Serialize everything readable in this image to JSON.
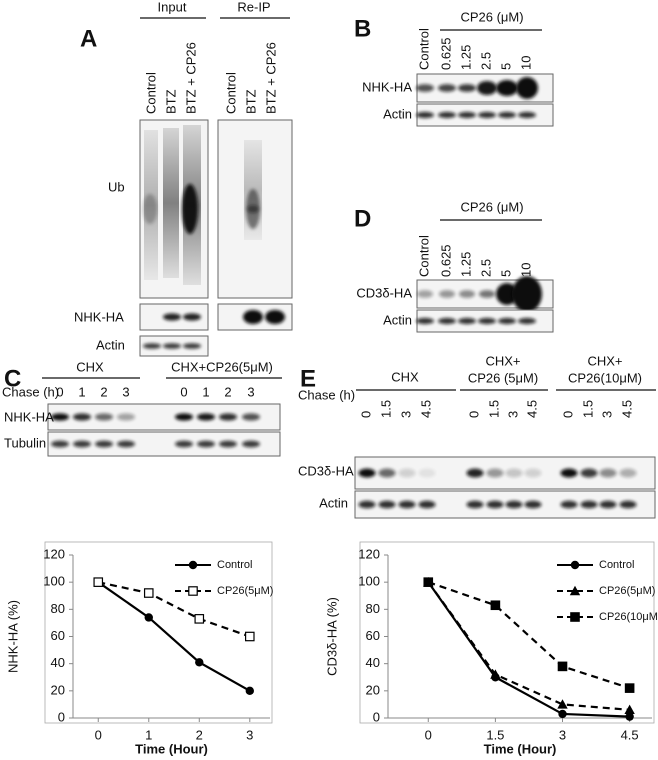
{
  "panels": {
    "A": {
      "label": "A",
      "groups": [
        "Input",
        "Re-IP"
      ],
      "lanes": [
        "Control",
        "BTZ",
        "BTZ + CP26"
      ],
      "rows": [
        "Ub",
        "NHK-HA",
        "Actin"
      ]
    },
    "B": {
      "label": "B",
      "treatment": "CP26 (μM)",
      "lanes": [
        "Control",
        "0.625",
        "1.25",
        "2.5",
        "5",
        "10"
      ],
      "rows": [
        "NHK-HA",
        "Actin"
      ]
    },
    "D": {
      "label": "D",
      "treatment": "CP26 (μM)",
      "lanes": [
        "Control",
        "0.625",
        "1.25",
        "2.5",
        "5",
        "10"
      ],
      "rows": [
        "CD3δ-HA",
        "Actin"
      ]
    },
    "C": {
      "label": "C",
      "groups": [
        [
          "CHX"
        ],
        [
          "CHX+CP26(5μM)"
        ]
      ],
      "chase": "Chase (h)",
      "lanes": [
        "0",
        "1",
        "2",
        "3"
      ],
      "rows": [
        "NHK-HA",
        "Tubulin"
      ]
    },
    "E": {
      "label": "E",
      "groups": [
        [
          "CHX"
        ],
        [
          "CHX+",
          "CP26 (5μM)"
        ],
        [
          "CHX+",
          "CP26(10μM)"
        ]
      ],
      "chase": "Chase (h)",
      "lanes": [
        "0",
        "1.5",
        "3",
        "4.5"
      ],
      "rows": [
        "CD3δ-HA",
        "Actin"
      ]
    }
  },
  "chart_data": [
    {
      "type": "line",
      "x_label": "Time (Hour)",
      "y_label": "NHK-HA (%)",
      "x": [
        0,
        1,
        2,
        3
      ],
      "xlim": [
        -0.5,
        3.4
      ],
      "xticks": [
        0,
        1,
        2,
        3
      ],
      "ylim": [
        0,
        120
      ],
      "yticks": [
        0,
        20,
        40,
        60,
        80,
        100,
        120
      ],
      "legend": "upper right",
      "series": [
        {
          "name": "Control",
          "color": "#000000",
          "dashed": false,
          "marker": "circle",
          "values": [
            100,
            74,
            41,
            20
          ]
        },
        {
          "name": "CP26(5μM)",
          "color": "#000000",
          "dashed": true,
          "marker": "square-open",
          "values": [
            100,
            92,
            73,
            60
          ]
        }
      ]
    },
    {
      "type": "line",
      "x_label": "Time (Hour)",
      "y_label": "CD3δ-HA (%)",
      "x": [
        0,
        1.5,
        3,
        4.5
      ],
      "xlim": [
        -0.9,
        5.0
      ],
      "xticks": [
        0,
        1.5,
        3,
        4.5
      ],
      "ylim": [
        0,
        120
      ],
      "yticks": [
        0,
        20,
        40,
        60,
        80,
        100,
        120
      ],
      "legend": "upper right",
      "series": [
        {
          "name": "Control",
          "color": "#000000",
          "dashed": false,
          "marker": "circle",
          "values": [
            100,
            30,
            3,
            1
          ]
        },
        {
          "name": "CP26(5μM)",
          "color": "#000000",
          "dashed": true,
          "marker": "triangle",
          "values": [
            100,
            32,
            10,
            6
          ]
        },
        {
          "name": "CP26(10μM)",
          "color": "#000000",
          "dashed": true,
          "marker": "square",
          "values": [
            100,
            83,
            38,
            22
          ]
        }
      ]
    }
  ]
}
